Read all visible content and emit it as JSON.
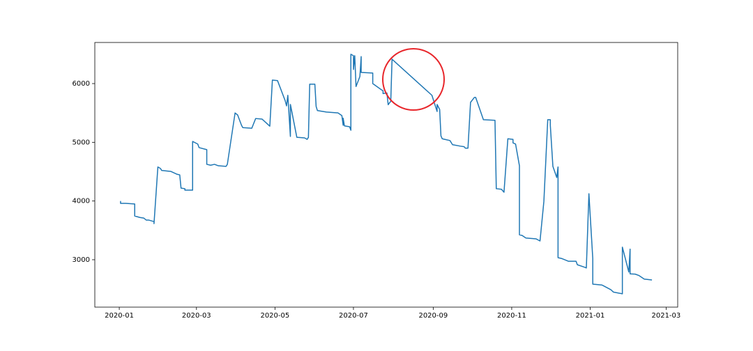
{
  "chart_data": {
    "type": "line",
    "color": "#1f77b4",
    "grid": false,
    "x": [
      1,
      1,
      5,
      12,
      12,
      16,
      19,
      21,
      23,
      27,
      27,
      30,
      32,
      33,
      40,
      45,
      47,
      48,
      51,
      51,
      57,
      57,
      61,
      62,
      68,
      68,
      71,
      74,
      77,
      83,
      84,
      90,
      92,
      95,
      96,
      103,
      106,
      111,
      117,
      119,
      123,
      129,
      130,
      131,
      133,
      133,
      138,
      144,
      146,
      147,
      148,
      152,
      153,
      154,
      161,
      170,
      173,
      174,
      174,
      175,
      179,
      180,
      180,
      182,
      182,
      183,
      184,
      187,
      188,
      188,
      197,
      197,
      204,
      205,
      205,
      208,
      209,
      211,
      212,
      243,
      247,
      247,
      249,
      250,
      251,
      257,
      259,
      265,
      268,
      269,
      271,
      273,
      276,
      277,
      283,
      292,
      293,
      297,
      299,
      302,
      306,
      306,
      308,
      311,
      311,
      313,
      316,
      324,
      327,
      330,
      333,
      335,
      335,
      337,
      340,
      341,
      341,
      344,
      349,
      355,
      356,
      362,
      363,
      365,
      368,
      368,
      375,
      376,
      382,
      384,
      391,
      391,
      396,
      397,
      397,
      401,
      404,
      408,
      414
    ],
    "values": [
      4000,
      3960,
      3960,
      3950,
      3745,
      3720,
      3710,
      3675,
      3675,
      3650,
      3615,
      4580,
      4555,
      4520,
      4505,
      4455,
      4445,
      4220,
      4210,
      4185,
      4185,
      5015,
      4970,
      4910,
      4875,
      4625,
      4610,
      4625,
      4600,
      4590,
      4625,
      5500,
      5465,
      5290,
      5250,
      5240,
      5405,
      5395,
      5275,
      6060,
      6050,
      5705,
      5620,
      5800,
      5100,
      5645,
      5085,
      5075,
      5050,
      5085,
      5990,
      5990,
      5610,
      5540,
      5515,
      5500,
      5455,
      5290,
      5410,
      5280,
      5265,
      5205,
      6500,
      6475,
      6240,
      6475,
      5950,
      6120,
      6460,
      6190,
      6180,
      6000,
      5890,
      5880,
      5830,
      5840,
      5640,
      5700,
      6415,
      5800,
      5525,
      5645,
      5560,
      5110,
      5060,
      5030,
      4960,
      4935,
      4925,
      4900,
      4900,
      5680,
      5765,
      5765,
      5385,
      5375,
      4210,
      4200,
      4150,
      5060,
      5050,
      4990,
      4970,
      4600,
      3425,
      3415,
      3370,
      3355,
      3320,
      3995,
      5385,
      5385,
      5290,
      4590,
      4400,
      4580,
      3035,
      3020,
      2975,
      2975,
      2915,
      2870,
      2860,
      4125,
      3020,
      2585,
      2570,
      2560,
      2490,
      2450,
      2420,
      3215,
      2790,
      3180,
      2760,
      2755,
      2730,
      2670,
      2655
    ],
    "xlim": [
      -19,
      434
    ],
    "xticks": [
      {
        "value": 0,
        "label": "2020-01"
      },
      {
        "value": 60,
        "label": "2020-03"
      },
      {
        "value": 121,
        "label": "2020-05"
      },
      {
        "value": 182,
        "label": "2020-07"
      },
      {
        "value": 244,
        "label": "2020-09"
      },
      {
        "value": 305,
        "label": "2020-11"
      },
      {
        "value": 366,
        "label": "2021-01"
      },
      {
        "value": 425,
        "label": "2021-03"
      }
    ],
    "ylim": [
      2193,
      6700
    ],
    "yticks": [
      3000,
      4000,
      5000,
      6000
    ]
  }
}
